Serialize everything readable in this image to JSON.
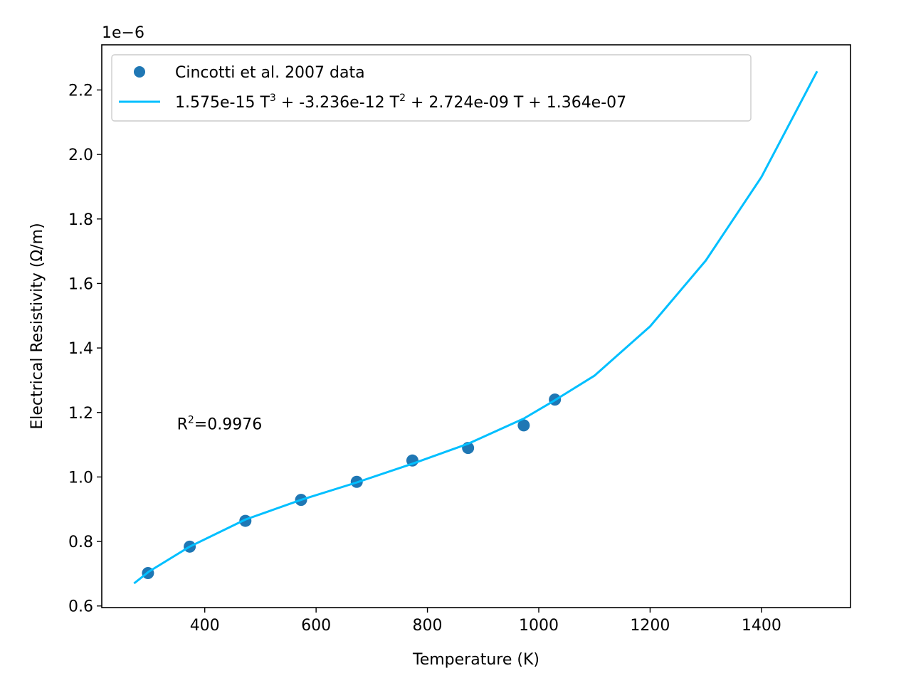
{
  "chart_data": {
    "type": "scatter",
    "xlabel": "Temperature (K)",
    "ylabel": "Electrical Resistivity (Ω/m)",
    "y_offset_label": "1e−6",
    "y_scale": 1e-06,
    "xlim": [
      215,
      1560
    ],
    "ylim": [
      0.595,
      2.34
    ],
    "x_ticks": [
      400,
      600,
      800,
      1000,
      1200,
      1400
    ],
    "y_ticks": [
      0.6,
      0.8,
      1.0,
      1.2,
      1.4,
      1.6,
      1.8,
      2.0,
      2.2
    ],
    "y_tick_labels": [
      "0.6",
      "0.8",
      "1.0",
      "1.2",
      "1.4",
      "1.6",
      "1.8",
      "2.0",
      "2.2"
    ],
    "grid": false,
    "legend_position": "top-left",
    "series": [
      {
        "name": "Cincotti et al. 2007 data",
        "kind": "scatter",
        "color": "#1f77b4",
        "x": [
          298,
          373,
          473,
          573,
          673,
          773,
          873,
          973,
          1029
        ],
        "y": [
          0.702,
          0.784,
          0.864,
          0.929,
          0.985,
          1.051,
          1.09,
          1.16,
          1.24
        ]
      },
      {
        "name_parts": {
          "a": "1.575e-15 T",
          "a_exp": "3",
          "b": " + -3.236e-12 T",
          "b_exp": "2",
          "c": " + 2.724e-09 T + 1.364e-07"
        },
        "kind": "line",
        "color": "#00bfff",
        "x": [
          273,
          300,
          373,
          473,
          573,
          673,
          773,
          873,
          973,
          1029,
          1100,
          1200,
          1300,
          1400,
          1500
        ],
        "y": [
          0.67,
          0.707,
          0.784,
          0.868,
          0.929,
          0.983,
          1.041,
          1.103,
          1.181,
          1.238,
          1.314,
          1.467,
          1.671,
          1.93,
          2.258
        ]
      }
    ],
    "annotation": {
      "prefix": "R",
      "exp": "2",
      "suffix": "=0.9976",
      "x": 350,
      "y": 1.148
    }
  }
}
